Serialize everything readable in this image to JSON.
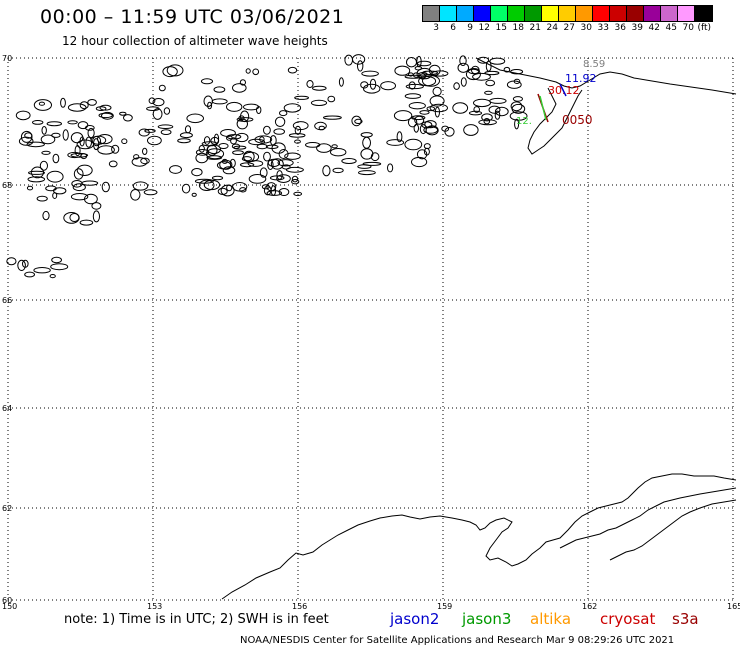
{
  "header": {
    "title": "00:00 – 11:59 UTC 03/06/2021",
    "subtitle": "12 hour collection of altimeter wave heights"
  },
  "legend": {
    "colors": [
      "#808080",
      "#00e5ff",
      "#00aaff",
      "#0000ff",
      "#00ff66",
      "#00cc00",
      "#009900",
      "#ffff00",
      "#ffcc00",
      "#ff9900",
      "#ff0000",
      "#cc0000",
      "#990000",
      "#990099",
      "#cc66cc",
      "#ff99ff",
      "#000000"
    ],
    "labels": [
      "3",
      "6",
      "9",
      "12",
      "15",
      "18",
      "21",
      "24",
      "27",
      "30",
      "33",
      "36",
      "39",
      "42",
      "45",
      "70",
      "(ft)"
    ]
  },
  "axes": {
    "lat_labels": [
      "70",
      "68",
      "66",
      "64",
      "62",
      "60"
    ],
    "lon_labels": [
      "150",
      "153",
      "156",
      "159",
      "162",
      "165"
    ]
  },
  "swh_readings": [
    {
      "text": "8.59",
      "color": "#808080"
    },
    {
      "text": "11.92",
      "color": "#0000cc"
    },
    {
      "text": "30.12",
      "color": "#cc0000"
    },
    {
      "text": "12.",
      "color": "#33cc33"
    },
    {
      "text": "0050",
      "color": "#990000"
    }
  ],
  "footer": {
    "note": "note: 1) Time is in UTC; 2) SWH is in feet",
    "satellites": [
      {
        "name": "jason2",
        "color": "#0000cc"
      },
      {
        "name": "jason3",
        "color": "#009900"
      },
      {
        "name": "altika",
        "color": "#ff9900"
      },
      {
        "name": "cryosat",
        "color": "#cc0000"
      },
      {
        "name": "s3a",
        "color": "#990000"
      }
    ],
    "credit": "NOAA/NESDIS Center for Satellite Applications and Research   Mar  9 08:29:26 UTC 2021"
  }
}
